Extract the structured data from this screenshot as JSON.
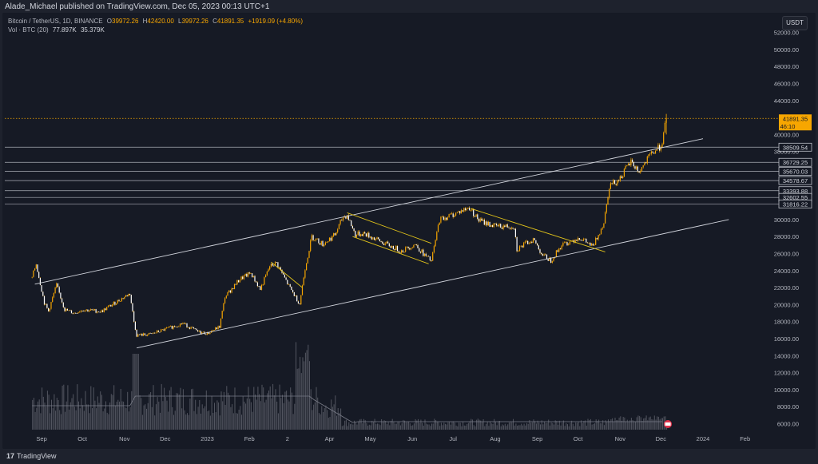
{
  "header": {
    "publisher_line": "Alade_Michael published on TradingView.com, Dec 05, 2023 00:13 UTC+1"
  },
  "legend": {
    "symbol": "Bitcoin / TetherUS, 1D, BINANCE",
    "o_label": "O",
    "o_value": "39972.26",
    "h_label": "H",
    "h_value": "42420.00",
    "l_label": "L",
    "l_value": "39972.26",
    "c_label": "C",
    "c_value": "41891.35",
    "change": "+1919.09 (+4.80%)",
    "vol_label": "Vol · BTC (20)",
    "vol_value": "77.897K",
    "vol_ma": "35.379K"
  },
  "currency_button": "USDT",
  "footer": {
    "brand": "TradingView"
  },
  "colors": {
    "background": "#161a25",
    "candle": "#f7a600",
    "line": "#d1d4dc",
    "axis_text": "#b2b5be",
    "price_label_bg": "#f7a600"
  },
  "chart_data": {
    "type": "candlestick",
    "symbol": "BTCUSDT",
    "interval": "1D",
    "ylim": [
      5000,
      53000
    ],
    "y_ticks": [
      6000,
      8000,
      10000,
      12000,
      14000,
      16000,
      18000,
      20000,
      22000,
      24000,
      26000,
      28000,
      30000,
      38000,
      40000,
      44000,
      46000,
      48000,
      50000,
      52000
    ],
    "x_ticks": [
      "Sep",
      "Oct",
      "Nov",
      "Dec",
      "2023",
      "Feb",
      "2",
      "Apr",
      "May",
      "Jun",
      "Jul",
      "Aug",
      "Sep",
      "Oct",
      "Nov",
      "Dec",
      "2024",
      "Feb"
    ],
    "price_path": [
      [
        "2022-08-25",
        23200
      ],
      [
        "2022-08-28",
        24800
      ],
      [
        "2022-09-03",
        20200
      ],
      [
        "2022-09-06",
        19200
      ],
      [
        "2022-09-12",
        22300
      ],
      [
        "2022-09-18",
        19400
      ],
      [
        "2022-09-25",
        19000
      ],
      [
        "2022-10-01",
        19400
      ],
      [
        "2022-10-15",
        19200
      ],
      [
        "2022-10-25",
        20200
      ],
      [
        "2022-11-05",
        21300
      ],
      [
        "2022-11-08",
        18000
      ],
      [
        "2022-11-10",
        16400
      ],
      [
        "2022-11-20",
        16500
      ],
      [
        "2022-12-01",
        17100
      ],
      [
        "2022-12-14",
        17800
      ],
      [
        "2022-12-25",
        16800
      ],
      [
        "2023-01-01",
        16600
      ],
      [
        "2023-01-10",
        17400
      ],
      [
        "2023-01-14",
        20900
      ],
      [
        "2023-01-25",
        23000
      ],
      [
        "2023-02-02",
        23700
      ],
      [
        "2023-02-09",
        21800
      ],
      [
        "2023-02-16",
        24500
      ],
      [
        "2023-02-21",
        24900
      ],
      [
        "2023-03-02",
        22200
      ],
      [
        "2023-03-10",
        20100
      ],
      [
        "2023-03-14",
        24300
      ],
      [
        "2023-03-19",
        28000
      ],
      [
        "2023-03-27",
        27100
      ],
      [
        "2023-04-05",
        28200
      ],
      [
        "2023-04-11",
        30300
      ],
      [
        "2023-04-14",
        30500
      ],
      [
        "2023-04-20",
        28200
      ],
      [
        "2023-04-26",
        28400
      ],
      [
        "2023-05-01",
        28000
      ],
      [
        "2023-05-10",
        27300
      ],
      [
        "2023-05-24",
        26300
      ],
      [
        "2023-06-03",
        27100
      ],
      [
        "2023-06-10",
        25800
      ],
      [
        "2023-06-15",
        25100
      ],
      [
        "2023-06-21",
        30000
      ],
      [
        "2023-07-01",
        30600
      ],
      [
        "2023-07-13",
        31400
      ],
      [
        "2023-07-20",
        29900
      ],
      [
        "2023-08-01",
        29200
      ],
      [
        "2023-08-15",
        29200
      ],
      [
        "2023-08-17",
        26500
      ],
      [
        "2023-08-29",
        27700
      ],
      [
        "2023-09-05",
        25800
      ],
      [
        "2023-09-11",
        25200
      ],
      [
        "2023-09-19",
        27000
      ],
      [
        "2023-10-02",
        27900
      ],
      [
        "2023-10-12",
        26800
      ],
      [
        "2023-10-20",
        29700
      ],
      [
        "2023-10-24",
        34000
      ],
      [
        "2023-10-31",
        34700
      ],
      [
        "2023-11-09",
        36800
      ],
      [
        "2023-11-15",
        35600
      ],
      [
        "2023-11-24",
        37700
      ],
      [
        "2023-12-01",
        38700
      ],
      [
        "2023-12-03",
        39900
      ],
      [
        "2023-12-05",
        41891.35
      ]
    ],
    "last_price": "41891.35",
    "countdown": "46:10",
    "horizontal_levels": [
      {
        "label": "38509.54",
        "value": 38509.54
      },
      {
        "label": "36729.25",
        "value": 36729.25
      },
      {
        "label": "35670.03",
        "value": 35670.03
      },
      {
        "label": "34578.67",
        "value": 34578.67
      },
      {
        "label": "33393.88",
        "value": 33393.88
      },
      {
        "label": "32602.55",
        "value": 32602.55
      },
      {
        "label": "31816.22",
        "value": 31816.22
      }
    ],
    "trendlines": [
      {
        "from": [
          "2022-08-27",
          22400
        ],
        "to": [
          "2024-01-01",
          39500
        ],
        "color": "#d1d4dc"
      },
      {
        "from": [
          "2022-11-10",
          14900
        ],
        "to": [
          "2024-01-20",
          30000
        ],
        "color": "#d1d4dc"
      },
      {
        "from": [
          "2023-04-14",
          30800
        ],
        "to": [
          "2023-06-15",
          27200
        ],
        "color": "#e0c21a"
      },
      {
        "from": [
          "2023-04-18",
          28000
        ],
        "to": [
          "2023-06-13",
          24800
        ],
        "color": "#e0c21a"
      },
      {
        "from": [
          "2023-02-17",
          25000
        ],
        "to": [
          "2023-03-12",
          22000
        ],
        "color": "#e0c21a"
      },
      {
        "from": [
          "2023-07-14",
          31300
        ],
        "to": [
          "2023-10-21",
          26200
        ],
        "color": "#e0c21a"
      }
    ],
    "volume": {
      "label": "Vol · BTC (20)",
      "current": "77.897K",
      "ma": "35.379K"
    }
  }
}
